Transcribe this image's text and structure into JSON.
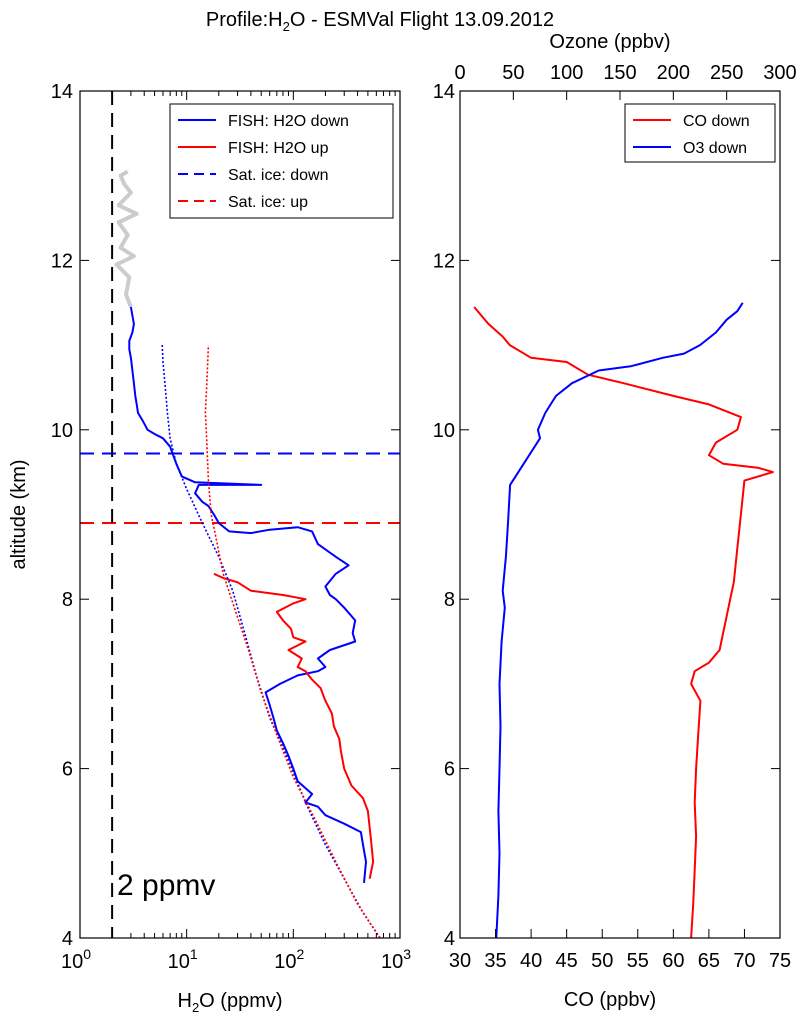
{
  "figure": {
    "title_prefix": "Profile:H",
    "title_sub": "2",
    "title_suffix": "O  - ESMVal Flight 13.09.2012"
  },
  "chart_data": [
    {
      "type": "line",
      "panel": "left",
      "xscale": "log",
      "xlim": [
        1,
        1000
      ],
      "ylim": [
        4,
        14
      ],
      "xlabel_main": "H",
      "xlabel_sub": "2",
      "xlabel_rest": "O (ppmv)",
      "ylabel": "altitude (km)",
      "xticks": [
        1,
        10,
        100,
        1000
      ],
      "xtick_base": "10",
      "xtick_exps": [
        "0",
        "1",
        "2",
        "3"
      ],
      "yticks": [
        4,
        6,
        8,
        10,
        12,
        14
      ],
      "ytick_labels": [
        "4",
        "6",
        "8",
        "10",
        "12",
        "14"
      ],
      "legend_position": "top-right",
      "annotation": "2 ppmv",
      "vline_x": 2,
      "vline_color": "#000000",
      "series": [
        {
          "name": "FISH: H2O down",
          "color": "#0000ff",
          "style": "solid",
          "width": 2,
          "points": [
            [
              460,
              4.65
            ],
            [
              480,
              4.9
            ],
            [
              450,
              5.1
            ],
            [
              430,
              5.25
            ],
            [
              300,
              5.35
            ],
            [
              200,
              5.45
            ],
            [
              170,
              5.55
            ],
            [
              130,
              5.6
            ],
            [
              150,
              5.7
            ],
            [
              110,
              5.85
            ],
            [
              100,
              6.0
            ],
            [
              90,
              6.15
            ],
            [
              80,
              6.3
            ],
            [
              70,
              6.45
            ],
            [
              65,
              6.6
            ],
            [
              60,
              6.75
            ],
            [
              55,
              6.9
            ],
            [
              75,
              7.0
            ],
            [
              110,
              7.1
            ],
            [
              170,
              7.15
            ],
            [
              200,
              7.2
            ],
            [
              170,
              7.3
            ],
            [
              220,
              7.4
            ],
            [
              380,
              7.5
            ],
            [
              360,
              7.6
            ],
            [
              380,
              7.75
            ],
            [
              300,
              7.9
            ],
            [
              250,
              8.0
            ],
            [
              220,
              8.05
            ],
            [
              200,
              8.15
            ],
            [
              250,
              8.3
            ],
            [
              330,
              8.4
            ],
            [
              250,
              8.5
            ],
            [
              170,
              8.65
            ],
            [
              150,
              8.8
            ],
            [
              110,
              8.85
            ],
            [
              60,
              8.82
            ],
            [
              40,
              8.78
            ],
            [
              25,
              8.8
            ],
            [
              20,
              8.9
            ],
            [
              18,
              9.0
            ],
            [
              16,
              9.1
            ],
            [
              14,
              9.15
            ],
            [
              12,
              9.25
            ],
            [
              13,
              9.35
            ],
            [
              50,
              9.35
            ],
            [
              12,
              9.38
            ],
            [
              9,
              9.45
            ],
            [
              8,
              9.6
            ],
            [
              7,
              9.8
            ],
            [
              6,
              9.9
            ],
            [
              5,
              9.95
            ],
            [
              4.3,
              10.0
            ],
            [
              3.9,
              10.1
            ],
            [
              3.5,
              10.2
            ],
            [
              3.4,
              10.3
            ],
            [
              3.3,
              10.4
            ],
            [
              3.2,
              10.55
            ],
            [
              3.1,
              10.7
            ],
            [
              3.0,
              10.85
            ],
            [
              2.9,
              10.95
            ],
            [
              2.9,
              11.05
            ],
            [
              3.1,
              11.15
            ],
            [
              3.2,
              11.25
            ],
            [
              3.1,
              11.35
            ],
            [
              3.0,
              11.45
            ]
          ]
        },
        {
          "name": "FISH: H2O up",
          "color": "#ff0000",
          "style": "solid",
          "width": 2,
          "points": [
            [
              520,
              4.7
            ],
            [
              560,
              4.9
            ],
            [
              540,
              5.1
            ],
            [
              520,
              5.3
            ],
            [
              500,
              5.5
            ],
            [
              450,
              5.65
            ],
            [
              350,
              5.8
            ],
            [
              300,
              6.0
            ],
            [
              280,
              6.2
            ],
            [
              270,
              6.35
            ],
            [
              240,
              6.5
            ],
            [
              230,
              6.65
            ],
            [
              200,
              6.8
            ],
            [
              180,
              6.95
            ],
            [
              150,
              7.05
            ],
            [
              130,
              7.15
            ],
            [
              110,
              7.2
            ],
            [
              120,
              7.3
            ],
            [
              90,
              7.4
            ],
            [
              130,
              7.5
            ],
            [
              100,
              7.55
            ],
            [
              95,
              7.65
            ],
            [
              80,
              7.75
            ],
            [
              70,
              7.85
            ],
            [
              100,
              7.95
            ],
            [
              130,
              8.0
            ],
            [
              80,
              8.05
            ],
            [
              40,
              8.1
            ],
            [
              30,
              8.2
            ],
            [
              22,
              8.25
            ],
            [
              18,
              8.3
            ]
          ]
        },
        {
          "name": "Sat. ice: down",
          "color": "#0000ff",
          "style": "dashed",
          "width": 2,
          "points": [
            [
              650,
              4.0
            ],
            [
              450,
              4.3
            ],
            [
              300,
              4.7
            ],
            [
              200,
              5.1
            ],
            [
              130,
              5.6
            ],
            [
              90,
              6.1
            ],
            [
              60,
              6.6
            ],
            [
              45,
              7.1
            ],
            [
              35,
              7.6
            ],
            [
              27,
              8.1
            ],
            [
              20,
              8.5
            ],
            [
              14,
              8.9
            ],
            [
              10,
              9.3
            ],
            [
              8,
              9.6
            ],
            [
              7,
              9.9
            ],
            [
              6.6,
              10.2
            ],
            [
              6.3,
              10.5
            ],
            [
              6.0,
              10.8
            ],
            [
              5.9,
              11.0
            ]
          ]
        },
        {
          "name": "Sat. ice: up",
          "color": "#ff0000",
          "style": "dashed",
          "width": 2,
          "points": [
            [
              650,
              4.0
            ],
            [
              400,
              4.4
            ],
            [
              250,
              4.9
            ],
            [
              160,
              5.4
            ],
            [
              100,
              5.9
            ],
            [
              70,
              6.4
            ],
            [
              50,
              6.9
            ],
            [
              38,
              7.4
            ],
            [
              28,
              7.9
            ],
            [
              22,
              8.3
            ],
            [
              19,
              8.7
            ],
            [
              17,
              9.0
            ],
            [
              16,
              9.4
            ],
            [
              15.5,
              9.8
            ],
            [
              15,
              10.2
            ],
            [
              15.5,
              10.6
            ],
            [
              16,
              11.0
            ]
          ]
        }
      ],
      "extra_series": [
        {
          "color": "#cccccc",
          "style": "solid",
          "width": 4,
          "points": [
            [
              3.0,
              11.45
            ],
            [
              2.7,
              11.6
            ],
            [
              2.9,
              11.8
            ],
            [
              2.2,
              11.95
            ],
            [
              3.2,
              12.05
            ],
            [
              2.4,
              12.15
            ],
            [
              2.8,
              12.3
            ],
            [
              2.3,
              12.45
            ],
            [
              3.4,
              12.55
            ],
            [
              2.3,
              12.65
            ],
            [
              3.0,
              12.8
            ],
            [
              2.6,
              12.9
            ],
            [
              2.4,
              13.0
            ],
            [
              2.8,
              13.05
            ]
          ]
        }
      ],
      "hlines": [
        {
          "y": 9.72,
          "color": "#0000ff"
        },
        {
          "y": 8.9,
          "color": "#ff0000"
        }
      ]
    },
    {
      "type": "line",
      "panel": "right",
      "ylim": [
        4,
        14
      ],
      "xlim_bottom": [
        30,
        75
      ],
      "xlim_top": [
        0,
        300
      ],
      "xlabel_bottom": "CO (ppbv)",
      "xlabel_top": "Ozone (ppbv)",
      "xticks_bottom": [
        30,
        35,
        40,
        45,
        50,
        55,
        60,
        65,
        70,
        75
      ],
      "xtick_labels_bottom": [
        "30",
        "35",
        "40",
        "45",
        "50",
        "55",
        "60",
        "65",
        "70",
        "75"
      ],
      "xticks_top": [
        0,
        50,
        100,
        150,
        200,
        250,
        300
      ],
      "xtick_labels_top": [
        "0",
        "50",
        "100",
        "150",
        "200",
        "250",
        "300"
      ],
      "yticks": [
        4,
        6,
        8,
        10,
        12,
        14
      ],
      "ytick_labels": [
        "4",
        "6",
        "8",
        "10",
        "12",
        "14"
      ],
      "legend_position": "top-right",
      "series": [
        {
          "name": "CO down",
          "axis": "bottom",
          "color": "#ff0000",
          "style": "solid",
          "width": 2,
          "points": [
            [
              62.5,
              4.0
            ],
            [
              62.8,
              4.4
            ],
            [
              63.0,
              4.8
            ],
            [
              63.2,
              5.2
            ],
            [
              63.0,
              5.6
            ],
            [
              63.2,
              6.0
            ],
            [
              63.5,
              6.4
            ],
            [
              63.8,
              6.8
            ],
            [
              62.5,
              7.0
            ],
            [
              63.0,
              7.15
            ],
            [
              65.0,
              7.25
            ],
            [
              66.5,
              7.4
            ],
            [
              67.0,
              7.6
            ],
            [
              67.5,
              7.8
            ],
            [
              68.0,
              8.0
            ],
            [
              68.5,
              8.2
            ],
            [
              69.0,
              8.6
            ],
            [
              69.5,
              9.0
            ],
            [
              70.0,
              9.4
            ],
            [
              74.0,
              9.5
            ],
            [
              72.0,
              9.55
            ],
            [
              67.0,
              9.6
            ],
            [
              65.0,
              9.7
            ],
            [
              66.0,
              9.85
            ],
            [
              69.0,
              10.0
            ],
            [
              69.5,
              10.15
            ],
            [
              65.0,
              10.3
            ],
            [
              60.0,
              10.4
            ],
            [
              53.0,
              10.55
            ],
            [
              48.0,
              10.65
            ],
            [
              45.0,
              10.8
            ],
            [
              40.0,
              10.85
            ],
            [
              37.0,
              11.0
            ],
            [
              36.0,
              11.1
            ],
            [
              34.0,
              11.25
            ],
            [
              33.0,
              11.35
            ],
            [
              32.0,
              11.45
            ]
          ]
        },
        {
          "name": "O3 down",
          "axis": "top",
          "color": "#0000ff",
          "style": "solid",
          "width": 2,
          "points": [
            [
              34,
              4.0
            ],
            [
              36,
              4.5
            ],
            [
              37,
              5.0
            ],
            [
              36,
              5.5
            ],
            [
              37,
              6.0
            ],
            [
              38,
              6.5
            ],
            [
              37,
              7.0
            ],
            [
              39,
              7.5
            ],
            [
              42,
              7.9
            ],
            [
              40,
              8.1
            ],
            [
              43,
              8.5
            ],
            [
              45,
              8.9
            ],
            [
              47,
              9.35
            ],
            [
              75,
              9.9
            ],
            [
              73,
              10.0
            ],
            [
              80,
              10.2
            ],
            [
              90,
              10.4
            ],
            [
              105,
              10.55
            ],
            [
              130,
              10.7
            ],
            [
              160,
              10.75
            ],
            [
              190,
              10.85
            ],
            [
              210,
              10.9
            ],
            [
              225,
              11.0
            ],
            [
              240,
              11.15
            ],
            [
              250,
              11.3
            ],
            [
              260,
              11.4
            ],
            [
              265,
              11.5
            ]
          ]
        }
      ]
    }
  ]
}
